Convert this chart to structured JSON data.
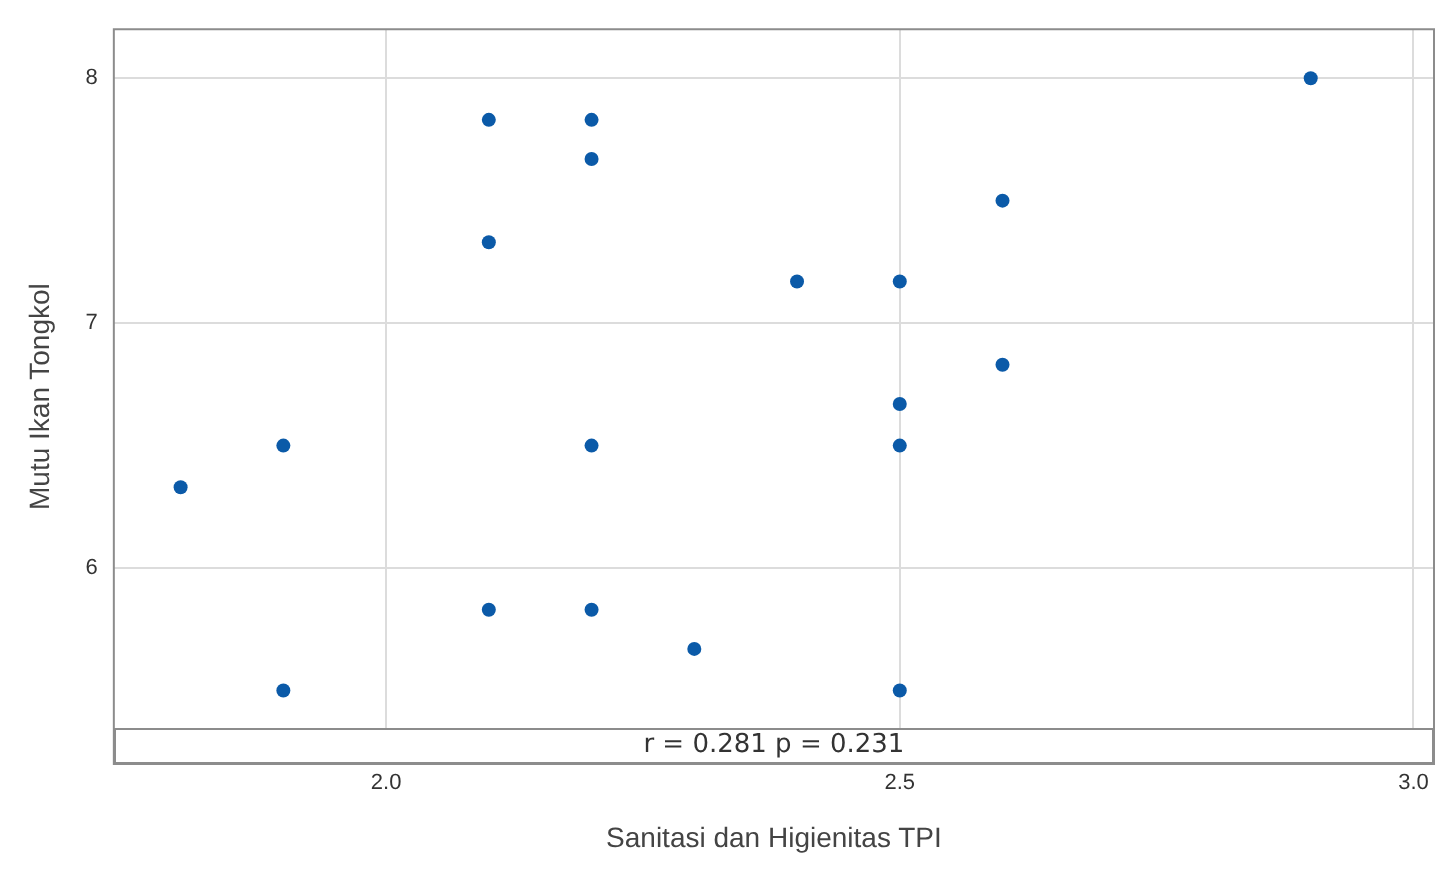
{
  "chart_data": {
    "type": "scatter",
    "xlabel": "Sanitasi dan Higienitas TPI",
    "ylabel": "Mutu Ikan Tongkol",
    "x": [
      1.8,
      1.9,
      1.9,
      2.1,
      2.1,
      2.1,
      2.2,
      2.2,
      2.2,
      2.2,
      2.3,
      2.4,
      2.5,
      2.5,
      2.5,
      2.5,
      2.6,
      2.6,
      2.9
    ],
    "values": [
      6.33,
      6.5,
      5.5,
      7.83,
      7.33,
      5.83,
      7.83,
      7.67,
      6.5,
      5.83,
      5.67,
      7.17,
      7.17,
      6.67,
      6.5,
      5.5,
      7.5,
      6.83,
      8.0
    ],
    "color": "#0b5aa8",
    "marker": "circle",
    "xlim": [
      1.735,
      3.02
    ],
    "xticks": [
      {
        "value": 2,
        "label": "2.0"
      },
      {
        "value": 2.5,
        "label": "2.5"
      },
      {
        "value": 3,
        "label": "3.0"
      }
    ],
    "ylim": [
      5.2,
      8.2
    ],
    "yticks": [
      6,
      7,
      8
    ],
    "grid": true,
    "annotations": [
      "r = 0.281  p = 0.231"
    ]
  }
}
